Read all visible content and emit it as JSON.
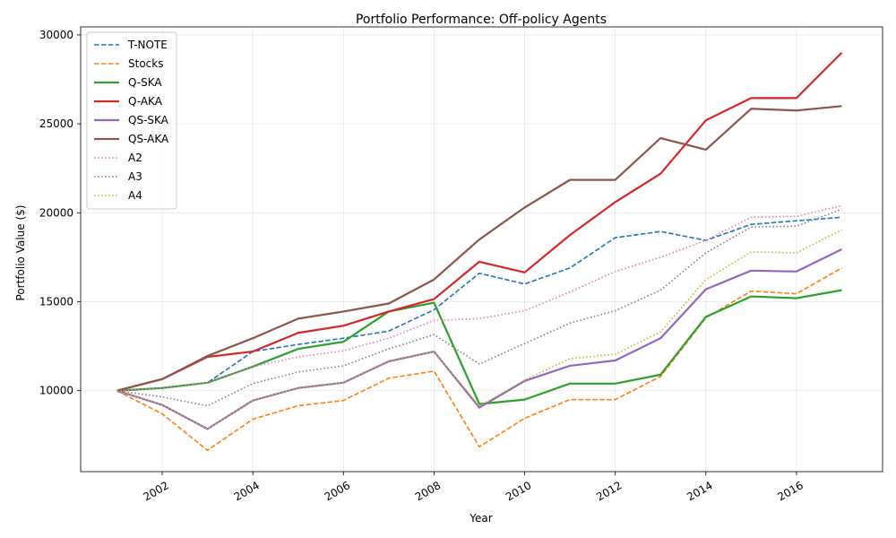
{
  "chart_data": {
    "type": "line",
    "title": "Portfolio Performance: Off-policy Agents",
    "xlabel": "Year",
    "ylabel": "Portfolio Value ($)",
    "xlim": [
      2000.2,
      2017.9
    ],
    "ylim": [
      5450,
      30450
    ],
    "xticks": [
      2002,
      2004,
      2006,
      2008,
      2010,
      2012,
      2014,
      2016
    ],
    "yticks": [
      10000,
      15000,
      20000,
      25000,
      30000
    ],
    "grid": true,
    "legend_position": "upper-left",
    "x": [
      2001,
      2002,
      2003,
      2004,
      2005,
      2006,
      2007,
      2008,
      2009,
      2010,
      2011,
      2012,
      2013,
      2014,
      2015,
      2016,
      2017
    ],
    "series": [
      {
        "name": "T-NOTE",
        "color": "#1f77b4",
        "style": "dashed",
        "values": [
          10000,
          10150,
          10450,
          12200,
          12600,
          12950,
          13350,
          14550,
          16600,
          16000,
          16900,
          18600,
          18950,
          18450,
          19350,
          19550,
          19750
        ]
      },
      {
        "name": "Stocks",
        "color": "#ff7f0e",
        "style": "dashed",
        "values": [
          10000,
          8700,
          6650,
          8400,
          9150,
          9450,
          10700,
          11100,
          6850,
          8450,
          9500,
          9500,
          10800,
          14100,
          15600,
          15450,
          16900
        ]
      },
      {
        "name": "Q-SKA",
        "color": "#2ca02c",
        "style": "solid",
        "values": [
          10000,
          10150,
          10450,
          11350,
          12350,
          12750,
          14450,
          14950,
          9250,
          9500,
          10400,
          10400,
          10900,
          14150,
          15300,
          15200,
          15650
        ]
      },
      {
        "name": "Q-AKA",
        "color": "#d62728",
        "style": "solid",
        "values": [
          10000,
          10650,
          11900,
          12200,
          13250,
          13650,
          14450,
          15150,
          17250,
          16650,
          18750,
          20600,
          22200,
          25200,
          26450,
          26450,
          29000
        ]
      },
      {
        "name": "QS-SKA",
        "color": "#9467bd",
        "style": "solid",
        "values": [
          10000,
          9200,
          7850,
          9450,
          10150,
          10450,
          11650,
          12200,
          9050,
          10550,
          11400,
          11700,
          12950,
          15700,
          16750,
          16700,
          17950
        ]
      },
      {
        "name": "QS-AKA",
        "color": "#8c564b",
        "style": "solid",
        "values": [
          10000,
          10650,
          11950,
          12950,
          14050,
          14450,
          14900,
          16250,
          18500,
          20300,
          21850,
          21850,
          24200,
          23550,
          25850,
          25750,
          26000
        ]
      },
      {
        "name": "A2",
        "color": "#e377c2",
        "style": "dotted",
        "values": [
          10000,
          10150,
          10450,
          11350,
          11900,
          12250,
          12950,
          13950,
          14050,
          14500,
          15550,
          16700,
          17500,
          18450,
          19750,
          19800,
          20400
        ]
      },
      {
        "name": "A3",
        "color": "#7f7f7f",
        "style": "dotted",
        "values": [
          10000,
          9650,
          9150,
          10400,
          11050,
          11400,
          12350,
          13150,
          11500,
          12650,
          13800,
          14500,
          15650,
          17750,
          19200,
          19250,
          20200
        ]
      },
      {
        "name": "A4",
        "color": "#bcbd22",
        "style": "dotted",
        "values": [
          10000,
          9200,
          7850,
          9450,
          10150,
          10450,
          11650,
          12200,
          9150,
          10600,
          11800,
          12050,
          13300,
          16250,
          17800,
          17750,
          19050
        ]
      }
    ]
  }
}
